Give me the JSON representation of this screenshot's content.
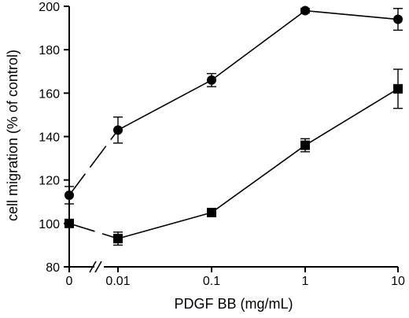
{
  "chart_data": {
    "type": "line",
    "xlabel": "PDGF BB (mg/mL)",
    "ylabel": "cell migration (% of  control)",
    "x_ticks": [
      "0",
      "0.01",
      "0.1",
      "1",
      "10"
    ],
    "x_scale": "log with axis break between 0 and 0.01",
    "y_ticks": [
      80,
      100,
      120,
      140,
      160,
      180,
      200
    ],
    "ylim": [
      80,
      200
    ],
    "grid": false,
    "series": [
      {
        "marker": "circle",
        "x": [
          "0",
          "0.01",
          "0.1",
          "1",
          "10"
        ],
        "values": [
          113,
          143,
          166,
          198,
          194
        ],
        "errors": [
          4,
          6,
          3,
          1,
          5
        ]
      },
      {
        "marker": "square",
        "x": [
          "0",
          "0.01",
          "0.1",
          "1",
          "10"
        ],
        "values": [
          100,
          93,
          105,
          136,
          162
        ],
        "errors": [
          0,
          3,
          1,
          3,
          9
        ]
      }
    ]
  }
}
